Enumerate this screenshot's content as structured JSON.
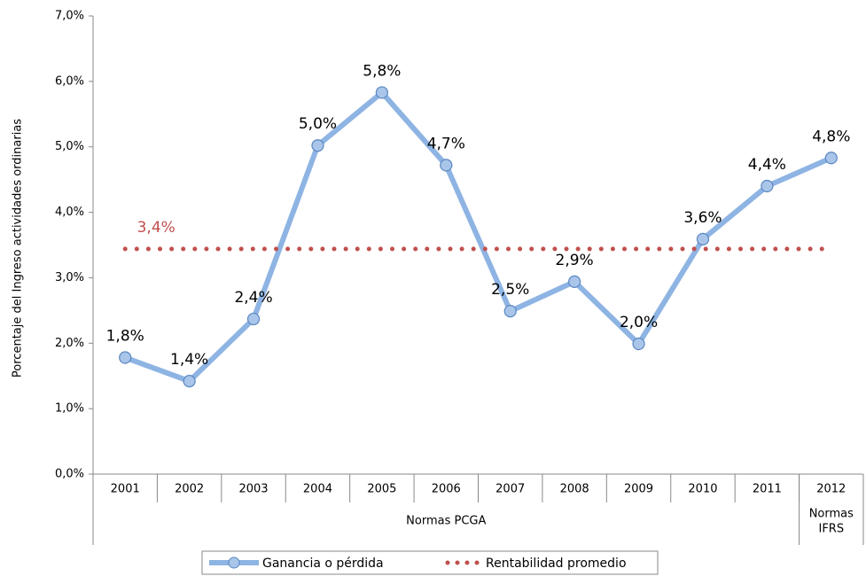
{
  "chart_data": {
    "type": "line",
    "y_axis_label": "Porcentaje del Ingreso actividades ordinarias",
    "categories": [
      "2001",
      "2002",
      "2003",
      "2004",
      "2005",
      "2006",
      "2007",
      "2008",
      "2009",
      "2010",
      "2011",
      "2012"
    ],
    "category_groups": [
      {
        "lines": [
          "Normas PCGA"
        ],
        "count": 11
      },
      {
        "lines": [
          "Normas",
          "IFRS"
        ],
        "count": 1
      }
    ],
    "series": [
      {
        "name": "Ganancia o pérdida",
        "color": "#8eb4e3",
        "style": "solid",
        "values": [
          1.78,
          1.42,
          2.37,
          5.02,
          5.83,
          4.72,
          2.49,
          2.94,
          1.99,
          3.59,
          4.4,
          4.83
        ],
        "value_labels": [
          "1,8%",
          "1,4%",
          "2,4%",
          "5,0%",
          "5,8%",
          "4,7%",
          "2,5%",
          "2,9%",
          "2,0%",
          "3,6%",
          "4,4%",
          "4,8%"
        ]
      },
      {
        "name": "Rentabilidad promedio",
        "color": "#c0504d",
        "style": "dotted",
        "values": [
          3.44,
          3.44,
          3.44,
          3.44,
          3.44,
          3.44,
          3.44,
          3.44,
          3.44,
          3.44,
          3.44,
          3.44
        ],
        "value_labels": [
          "3,4%",
          null,
          null,
          null,
          null,
          null,
          null,
          null,
          null,
          null,
          null,
          null
        ]
      }
    ],
    "ylim": [
      0,
      7
    ],
    "yticks": [
      {
        "value": 0,
        "label": "0,0%"
      },
      {
        "value": 1,
        "label": "1,0%"
      },
      {
        "value": 2,
        "label": "2,0%"
      },
      {
        "value": 3,
        "label": "3,0%"
      },
      {
        "value": 4,
        "label": "4,0%"
      },
      {
        "value": 5,
        "label": "5,0%"
      },
      {
        "value": 6,
        "label": "6,0%"
      },
      {
        "value": 7,
        "label": "7,0%"
      }
    ],
    "grid": false,
    "legend": "bottom"
  }
}
